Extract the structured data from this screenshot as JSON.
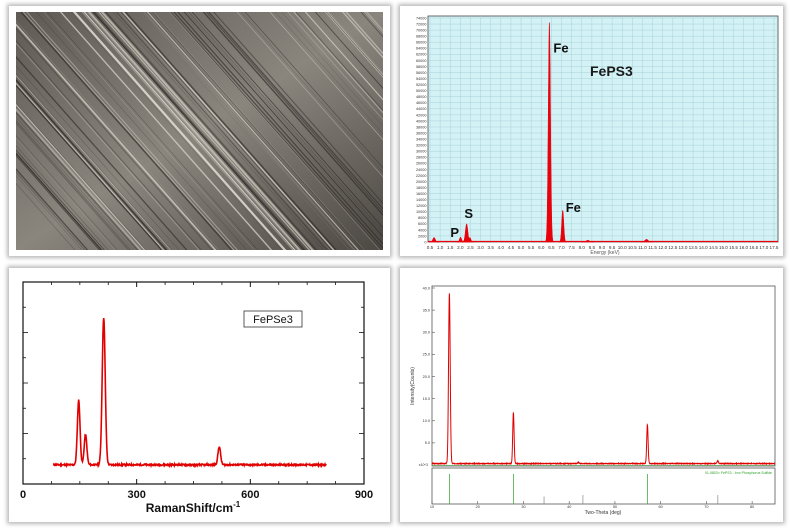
{
  "panels": {
    "edx": {
      "label": "FePS3"
    },
    "raman": {
      "label": "FePSe3"
    }
  },
  "chart_data": [
    {
      "type": "area",
      "panel": "edx",
      "color": "#e8000b",
      "background": "#d3f2f6",
      "grid": true,
      "xlim": [
        0.5,
        17.5
      ],
      "ylim": [
        0,
        74000
      ],
      "xlabel": "Energy (keV)",
      "ylabel": "",
      "x_ticks": [
        "0.5",
        "1.0",
        "1.5",
        "2.0",
        "2.5",
        "3.0",
        "3.5",
        "4.0",
        "4.5",
        "5.0",
        "5.5",
        "6.0",
        "6.5",
        "7.0",
        "7.5",
        "8.0",
        "8.5",
        "9.0",
        "9.5",
        "10.0",
        "10.5",
        "11.0",
        "11.5",
        "12.0",
        "12.5",
        "13.0",
        "13.5",
        "14.0",
        "14.5",
        "15.0",
        "15.5",
        "16.0",
        "16.5",
        "17.0",
        "17.5"
      ],
      "y_ticks": [
        "0",
        "2000",
        "4000",
        "6000",
        "8000",
        "10000",
        "12000",
        "14000",
        "16000",
        "18000",
        "20000",
        "22000",
        "24000",
        "26000",
        "28000",
        "30000",
        "32000",
        "34000",
        "36000",
        "38000",
        "40000",
        "42000",
        "44000",
        "46000",
        "48000",
        "50000",
        "52000",
        "54000",
        "56000",
        "58000",
        "60000",
        "62000",
        "64000",
        "66000",
        "68000",
        "70000",
        "72000",
        "74000"
      ],
      "peaks": [
        {
          "x": 0.7,
          "y": 1500,
          "w": 0.06
        },
        {
          "x": 2.01,
          "y": 1600,
          "w": 0.05
        },
        {
          "x": 2.31,
          "y": 6000,
          "w": 0.06
        },
        {
          "x": 2.47,
          "y": 1500,
          "w": 0.05
        },
        {
          "x": 6.4,
          "y": 72500,
          "w": 0.055
        },
        {
          "x": 7.06,
          "y": 10500,
          "w": 0.05
        },
        {
          "x": 8.3,
          "y": 600,
          "w": 0.08
        },
        {
          "x": 11.2,
          "y": 900,
          "w": 0.08
        }
      ],
      "annotations": [
        {
          "text": "P",
          "x": 2.0,
          "y": 1600
        },
        {
          "text": "S",
          "x": 2.3,
          "y": 6000
        },
        {
          "text": "Fe",
          "x": 6.4,
          "y": 72500
        },
        {
          "text": "Fe",
          "x": 7.06,
          "y": 10500
        }
      ]
    },
    {
      "type": "line",
      "panel": "raman",
      "color": "#e00000",
      "xlim": [
        0,
        900
      ],
      "ylim": [
        0,
        1.0
      ],
      "xlabel": "RamanShift/cm",
      "xlabel_sup": "-1",
      "ylabel": "",
      "x_ticks": [
        0,
        300,
        600,
        900
      ],
      "x_range": [
        80,
        800
      ],
      "baseline": 0.095,
      "peaks": [
        {
          "x": 147,
          "h": 0.32,
          "w": 3.5
        },
        {
          "x": 165,
          "h": 0.15,
          "w": 3.5
        },
        {
          "x": 213,
          "h": 0.73,
          "w": 4.0
        },
        {
          "x": 518,
          "h": 0.09,
          "w": 3.5
        }
      ]
    },
    {
      "type": "line",
      "panel": "xrd",
      "color": "#e00000",
      "ref_color": "#2ca02c",
      "xlim": [
        10,
        85
      ],
      "ylim": [
        0,
        40
      ],
      "xlabel": "Two-Theta (deg)",
      "ylabel": "Intensity(Counts)",
      "x_ticks": [
        "10",
        "20",
        "30",
        "40",
        "50",
        "60",
        "70",
        "80"
      ],
      "y_ticks": [
        "0",
        "5.0",
        "10.0",
        "15.0",
        "20.0",
        "25.0",
        "30.0",
        "35.0",
        "40.0"
      ],
      "y_scale_label": "x10^3",
      "baseline": 0.25,
      "peaks": [
        {
          "x": 13.8,
          "h": 38.5,
          "w": 0.18
        },
        {
          "x": 27.8,
          "h": 11.5,
          "w": 0.15
        },
        {
          "x": 57.1,
          "h": 8.8,
          "w": 0.15
        },
        {
          "x": 42.0,
          "h": 0.3,
          "w": 0.15
        },
        {
          "x": 72.5,
          "h": 0.6,
          "w": 0.15
        }
      ],
      "ref_pattern_label": "01-0803> FePS3 - Iron Phosphorus Sulfide",
      "ref_lines": [
        {
          "x": 13.8,
          "h": 1.0
        },
        {
          "x": 27.8,
          "h": 1.0
        },
        {
          "x": 34.5,
          "h": 0.25
        },
        {
          "x": 43.0,
          "h": 0.3
        },
        {
          "x": 57.1,
          "h": 1.0
        },
        {
          "x": 72.5,
          "h": 0.3
        }
      ]
    }
  ]
}
